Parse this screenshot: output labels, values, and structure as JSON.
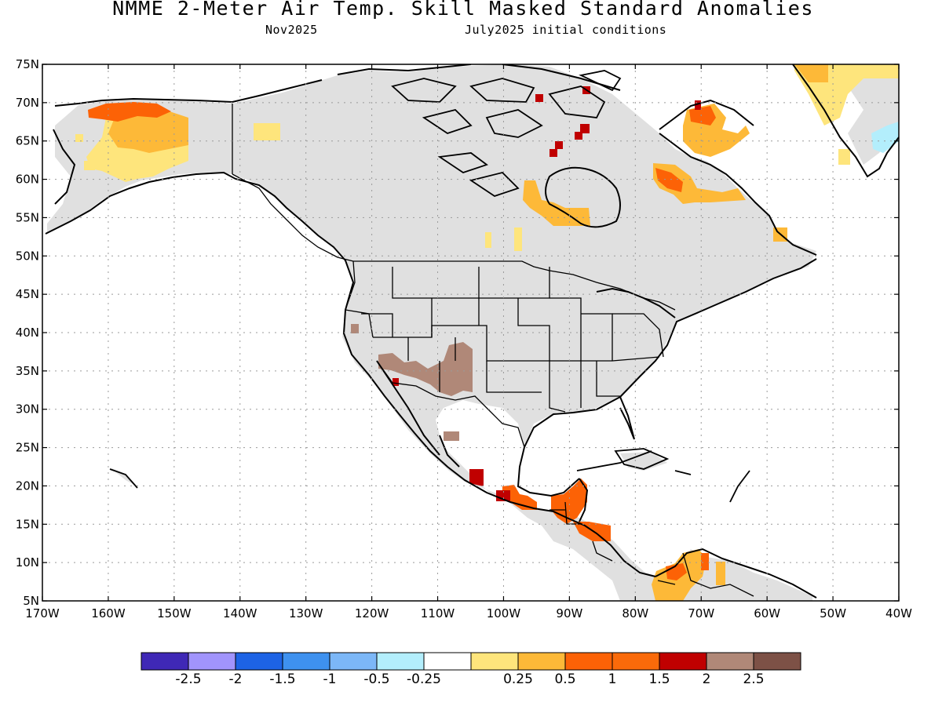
{
  "header": {
    "title": "NMME 2-Meter Air Temp. Skill Masked Standard Anomalies",
    "target_month": "Nov2025",
    "initial_conditions": "July2025 initial conditions"
  },
  "map": {
    "lon_range": [
      -170,
      -40
    ],
    "lat_range": [
      5,
      75
    ],
    "lat_labels": [
      "75N",
      "70N",
      "65N",
      "60N",
      "55N",
      "50N",
      "45N",
      "40N",
      "35N",
      "30N",
      "25N",
      "20N",
      "15N",
      "10N",
      "5N"
    ],
    "lat_values": [
      75,
      70,
      65,
      60,
      55,
      50,
      45,
      40,
      35,
      30,
      25,
      20,
      15,
      10,
      5
    ],
    "lon_labels": [
      "170W",
      "160W",
      "150W",
      "140W",
      "130W",
      "120W",
      "110W",
      "100W",
      "90W",
      "80W",
      "70W",
      "60W",
      "50W",
      "40W"
    ],
    "lon_values": [
      -170,
      -160,
      -150,
      -140,
      -130,
      -120,
      -110,
      -100,
      -90,
      -80,
      -70,
      -60,
      -50,
      -40
    ],
    "masked_color": "#e0e0e0",
    "anomaly_regions": [
      {
        "name": "alaska-interior",
        "level": "0.25-0.5",
        "color": "#fee57c"
      },
      {
        "name": "alaska-north",
        "level": "0.5-1",
        "color": "#fdb938"
      },
      {
        "name": "alaska-northwest",
        "level": "1-1.5",
        "color": "#fc6206"
      },
      {
        "name": "hudson-bay-south",
        "level": "0.5-1",
        "color": "#fdb938"
      },
      {
        "name": "baffin-island",
        "level": "0.5-1",
        "color": "#fdb938"
      },
      {
        "name": "labrador",
        "level": "0.5-1",
        "color": "#fdb938"
      },
      {
        "name": "southwest-us",
        "level": "2-2.5",
        "color": "#b08878"
      },
      {
        "name": "southern-mexico",
        "level": "1-1.5",
        "color": "#fc6206"
      },
      {
        "name": "central-america",
        "level": "1-1.5",
        "color": "#fc6206"
      },
      {
        "name": "northern-south-america",
        "level": "0.5-1",
        "color": "#fdb938"
      },
      {
        "name": "greenland-east",
        "level": "0.25-0.5",
        "color": "#fee57c"
      },
      {
        "name": "greenland-southeast",
        "level": "-0.5--0.25",
        "color": "#b3eefc"
      }
    ]
  },
  "colorbar": {
    "colors": [
      "#3f28b6",
      "#a194fc",
      "#1d63e5",
      "#3e91ef",
      "#7cb7f7",
      "#b3eefc",
      "#ffffff",
      "#fee57c",
      "#fdb938",
      "#fc6206",
      "#fa6a0a",
      "#c00000",
      "#b08878",
      "#7d5146"
    ],
    "labels": [
      "-2.5",
      "-2",
      "-1.5",
      "-1",
      "-0.5",
      "-0.25",
      "0.25",
      "0.5",
      "1",
      "1.5",
      "2",
      "2.5"
    ]
  }
}
